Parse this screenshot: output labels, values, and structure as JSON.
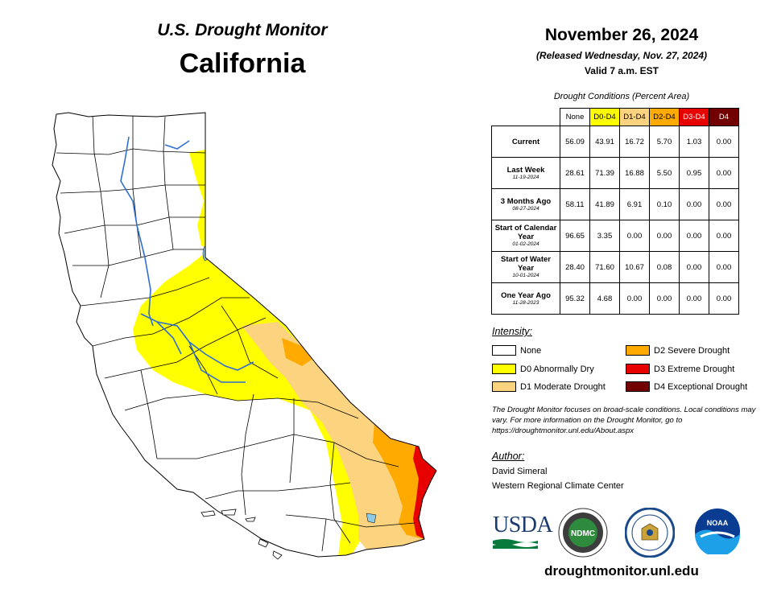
{
  "header": {
    "subtitle": "U.S. Drought Monitor",
    "title": "California",
    "date": "November 26, 2024",
    "released": "(Released Wednesday, Nov. 27, 2024)",
    "valid": "Valid 7 a.m. EST"
  },
  "table": {
    "caption": "Drought Conditions (Percent Area)",
    "columns": [
      "None",
      "D0-D4",
      "D1-D4",
      "D2-D4",
      "D3-D4",
      "D4"
    ],
    "column_colors": [
      "#ffffff",
      "#ffff00",
      "#fcd37f",
      "#ffaa00",
      "#e60000",
      "#730000"
    ],
    "rows": [
      {
        "label": "Current",
        "date": "",
        "values": [
          "56.09",
          "43.91",
          "16.72",
          "5.70",
          "1.03",
          "0.00"
        ]
      },
      {
        "label": "Last Week",
        "date": "11-19-2024",
        "values": [
          "28.61",
          "71.39",
          "16.88",
          "5.50",
          "0.95",
          "0.00"
        ]
      },
      {
        "label": "3 Months Ago",
        "date": "08-27-2024",
        "values": [
          "58.11",
          "41.89",
          "6.91",
          "0.10",
          "0.00",
          "0.00"
        ]
      },
      {
        "label": "Start of Calendar Year",
        "date": "01-02-2024",
        "values": [
          "96.65",
          "3.35",
          "0.00",
          "0.00",
          "0.00",
          "0.00"
        ]
      },
      {
        "label": "Start of Water Year",
        "date": "10-01-2024",
        "values": [
          "28.40",
          "71.60",
          "10.67",
          "0.08",
          "0.00",
          "0.00"
        ]
      },
      {
        "label": "One Year Ago",
        "date": "11-28-2023",
        "values": [
          "95.32",
          "4.68",
          "0.00",
          "0.00",
          "0.00",
          "0.00"
        ]
      }
    ]
  },
  "intensity": {
    "title": "Intensity:",
    "items": [
      {
        "label": "None",
        "color": "#ffffff"
      },
      {
        "label": "D0 Abnormally Dry",
        "color": "#ffff00"
      },
      {
        "label": "D1 Moderate Drought",
        "color": "#fcd37f"
      },
      {
        "label": "D2 Severe Drought",
        "color": "#ffaa00"
      },
      {
        "label": "D3 Extreme Drought",
        "color": "#e60000"
      },
      {
        "label": "D4 Exceptional Drought",
        "color": "#730000"
      }
    ]
  },
  "note": "The Drought Monitor focuses on broad-scale conditions. Local conditions may vary. For more information on the Drought Monitor, go to https://droughtmonitor.unl.edu/About.aspx",
  "author": {
    "label": "Author:",
    "name": "David Simeral",
    "org": "Western Regional Climate Center"
  },
  "logos": {
    "usda": "USDA",
    "ndmc": "NDMC",
    "noaa": "NOAA"
  },
  "footer_url": "droughtmonitor.unl.edu"
}
